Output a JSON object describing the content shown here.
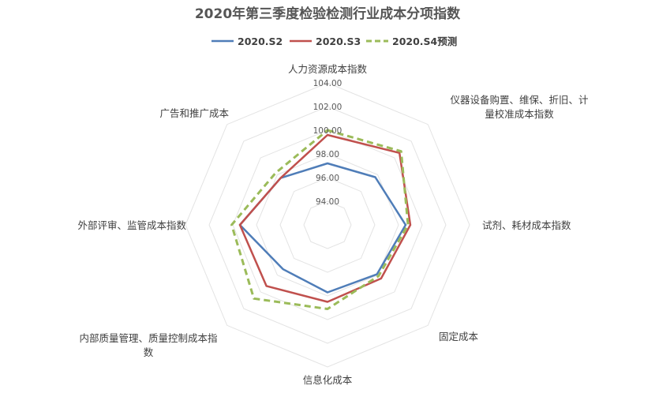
{
  "chart_data": {
    "type": "radar",
    "title": "2020年第三季度检验检测行业成本分项指数",
    "rlim": [
      92,
      104
    ],
    "ticks": [
      "94.00",
      "96.00",
      "98.00",
      "100.00",
      "102.00",
      "104.00"
    ],
    "tick_values": [
      94,
      96,
      98,
      100,
      102,
      104
    ],
    "grid": true,
    "grid_shape": "octagon",
    "legend_position": "top",
    "categories": [
      "人力资源成本指数",
      [
        "仪器设备购置、维保、折旧、计",
        "量校准成本指数"
      ],
      "试剂、耗材成本指数",
      "固定成本",
      "信息化成本",
      [
        "内部质量管理、质量控制成本指",
        "数"
      ],
      "外部评审、监管成本指数",
      "广告和推广成本"
    ],
    "series": [
      {
        "name": "2020.S2",
        "color": "#4f7db8",
        "dash": "solid",
        "values": [
          97.2,
          97.7,
          98.6,
          97.9,
          97.7,
          97.3,
          99.4,
          97.6
        ]
      },
      {
        "name": "2020.S3",
        "color": "#c0504d",
        "dash": "solid",
        "values": [
          99.6,
          100.6,
          99.0,
          98.4,
          98.5,
          99.3,
          99.4,
          97.6
        ]
      },
      {
        "name": "2020.S4预测",
        "color": "#9bbb59",
        "dash": "dashed",
        "values": [
          100.0,
          100.8,
          98.8,
          98.1,
          99.1,
          100.8,
          100.1,
          98.2
        ]
      }
    ]
  }
}
